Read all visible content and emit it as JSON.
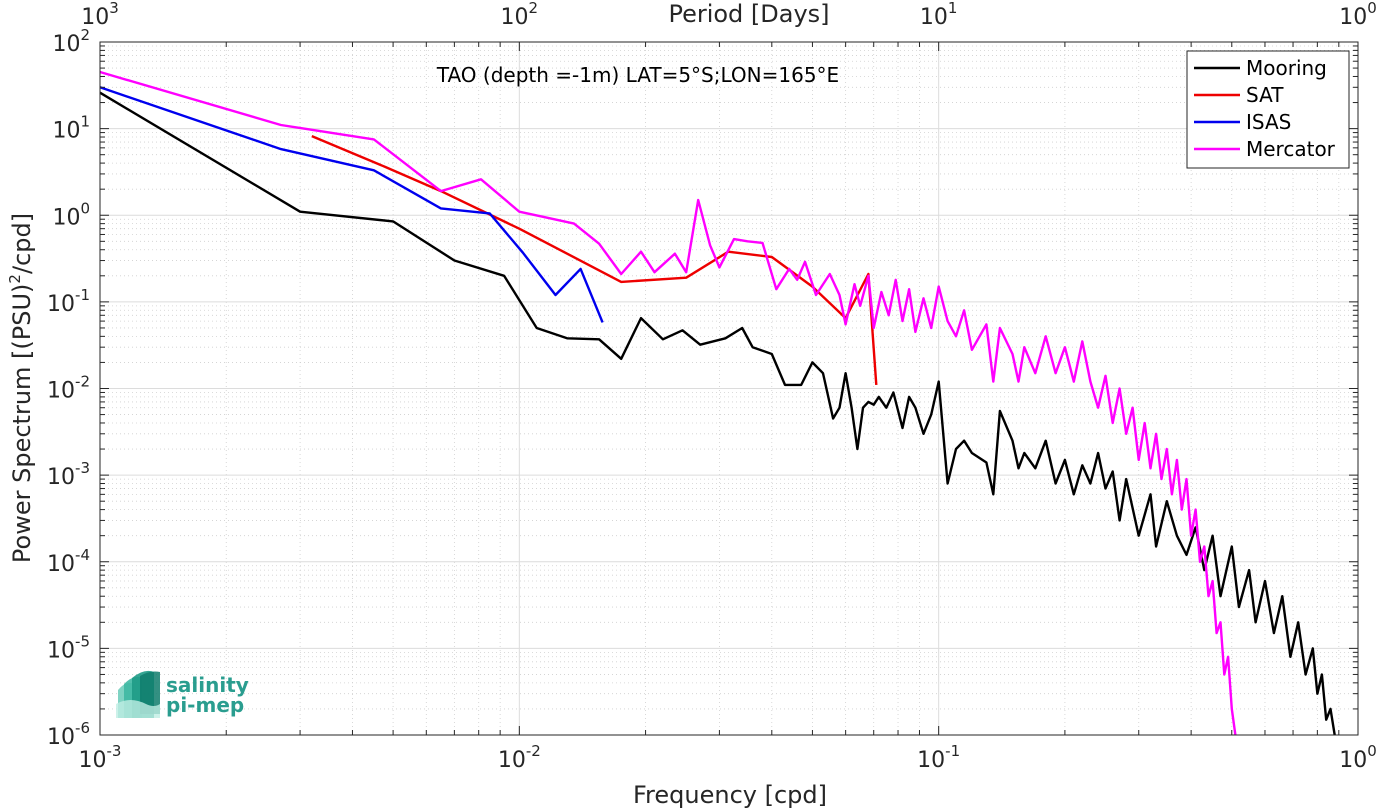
{
  "chart_data": {
    "type": "line",
    "title": "TAO (depth =-1m) LAT=5°S;LON=165°E",
    "xlabel": "Frequency [cpd]",
    "ylabel": "Power Spectrum [(PSU)^2/cpd]",
    "ylabel_parts": [
      "Power Spectrum [(PSU)",
      "2",
      "/cpd]"
    ],
    "top_xlabel": "Period [Days]",
    "xscale": "log",
    "yscale": "log",
    "xlim": [
      0.001,
      1
    ],
    "ylim": [
      1e-06,
      100
    ],
    "grid": true,
    "legend_position": "top-right",
    "x_ticks": [
      {
        "value": 0.001,
        "base": "10",
        "exp": "-3"
      },
      {
        "value": 0.01,
        "base": "10",
        "exp": "-2"
      },
      {
        "value": 0.1,
        "base": "10",
        "exp": "-1"
      },
      {
        "value": 1,
        "base": "10",
        "exp": "0"
      }
    ],
    "top_ticks": [
      {
        "value": 0.001,
        "base": "10",
        "exp": "3"
      },
      {
        "value": 0.01,
        "base": "10",
        "exp": "2"
      },
      {
        "value": 0.1,
        "base": "10",
        "exp": "1"
      },
      {
        "value": 1,
        "base": "10",
        "exp": "0"
      }
    ],
    "y_ticks": [
      {
        "value": 1e-06,
        "base": "10",
        "exp": "-6"
      },
      {
        "value": 1e-05,
        "base": "10",
        "exp": "-5"
      },
      {
        "value": 0.0001,
        "base": "10",
        "exp": "-4"
      },
      {
        "value": 0.001,
        "base": "10",
        "exp": "-3"
      },
      {
        "value": 0.01,
        "base": "10",
        "exp": "-2"
      },
      {
        "value": 0.1,
        "base": "10",
        "exp": "-1"
      },
      {
        "value": 1,
        "base": "10",
        "exp": "0"
      },
      {
        "value": 10,
        "base": "10",
        "exp": "1"
      },
      {
        "value": 100,
        "base": "10",
        "exp": "2"
      }
    ],
    "series": [
      {
        "name": "Mooring",
        "color": "#000000",
        "points": [
          [
            0.001,
            26
          ],
          [
            0.003,
            1.1
          ],
          [
            0.005,
            0.85
          ],
          [
            0.007,
            0.3
          ],
          [
            0.0092,
            0.2
          ],
          [
            0.011,
            0.05
          ],
          [
            0.013,
            0.038
          ],
          [
            0.0155,
            0.037
          ],
          [
            0.0175,
            0.022
          ],
          [
            0.0195,
            0.065
          ],
          [
            0.022,
            0.037
          ],
          [
            0.0245,
            0.047
          ],
          [
            0.027,
            0.032
          ],
          [
            0.031,
            0.038
          ],
          [
            0.034,
            0.05
          ],
          [
            0.036,
            0.03
          ],
          [
            0.04,
            0.025
          ],
          [
            0.043,
            0.011
          ],
          [
            0.047,
            0.011
          ],
          [
            0.05,
            0.02
          ],
          [
            0.053,
            0.015
          ],
          [
            0.056,
            0.0045
          ],
          [
            0.058,
            0.006
          ],
          [
            0.06,
            0.015
          ],
          [
            0.062,
            0.006
          ],
          [
            0.064,
            0.002
          ],
          [
            0.066,
            0.006
          ],
          [
            0.068,
            0.007
          ],
          [
            0.07,
            0.0065
          ],
          [
            0.072,
            0.008
          ],
          [
            0.075,
            0.006
          ],
          [
            0.078,
            0.009
          ],
          [
            0.082,
            0.0035
          ],
          [
            0.085,
            0.008
          ],
          [
            0.088,
            0.006
          ],
          [
            0.092,
            0.003
          ],
          [
            0.096,
            0.005
          ],
          [
            0.1,
            0.012
          ],
          [
            0.105,
            0.0008
          ],
          [
            0.11,
            0.002
          ],
          [
            0.115,
            0.0025
          ],
          [
            0.12,
            0.0018
          ],
          [
            0.13,
            0.0014
          ],
          [
            0.135,
            0.0006
          ],
          [
            0.14,
            0.0055
          ],
          [
            0.15,
            0.0025
          ],
          [
            0.155,
            0.0012
          ],
          [
            0.16,
            0.0018
          ],
          [
            0.17,
            0.0012
          ],
          [
            0.18,
            0.0025
          ],
          [
            0.19,
            0.0008
          ],
          [
            0.2,
            0.0015
          ],
          [
            0.21,
            0.0006
          ],
          [
            0.22,
            0.0013
          ],
          [
            0.23,
            0.0008
          ],
          [
            0.24,
            0.0018
          ],
          [
            0.25,
            0.0007
          ],
          [
            0.26,
            0.0011
          ],
          [
            0.27,
            0.0003
          ],
          [
            0.28,
            0.0009
          ],
          [
            0.3,
            0.0002
          ],
          [
            0.32,
            0.0006
          ],
          [
            0.33,
            0.00015
          ],
          [
            0.35,
            0.0005
          ],
          [
            0.37,
            0.0002
          ],
          [
            0.39,
            0.00012
          ],
          [
            0.41,
            0.00025
          ],
          [
            0.43,
            8e-05
          ],
          [
            0.45,
            0.0002
          ],
          [
            0.47,
            4e-05
          ],
          [
            0.5,
            0.00015
          ],
          [
            0.52,
            3e-05
          ],
          [
            0.55,
            8e-05
          ],
          [
            0.57,
            2e-05
          ],
          [
            0.6,
            6e-05
          ],
          [
            0.63,
            1.5e-05
          ],
          [
            0.66,
            4e-05
          ],
          [
            0.69,
            8e-06
          ],
          [
            0.72,
            2e-05
          ],
          [
            0.75,
            5e-06
          ],
          [
            0.78,
            1e-05
          ],
          [
            0.8,
            3e-06
          ],
          [
            0.82,
            5e-06
          ],
          [
            0.84,
            1.5e-06
          ],
          [
            0.86,
            2e-06
          ],
          [
            0.88,
            1e-06
          ]
        ]
      },
      {
        "name": "SAT",
        "color": "#ee0000",
        "points": [
          [
            0.0032,
            8.2
          ],
          [
            0.0048,
            3.6
          ],
          [
            0.0065,
            1.9
          ],
          [
            0.01,
            0.7
          ],
          [
            0.0175,
            0.17
          ],
          [
            0.025,
            0.19
          ],
          [
            0.0315,
            0.38
          ],
          [
            0.04,
            0.33
          ],
          [
            0.05,
            0.15
          ],
          [
            0.06,
            0.065
          ],
          [
            0.068,
            0.21
          ],
          [
            0.071,
            0.011
          ]
        ]
      },
      {
        "name": "ISAS",
        "color": "#0000ee",
        "points": [
          [
            0.001,
            30
          ],
          [
            0.0027,
            5.8
          ],
          [
            0.0045,
            3.3
          ],
          [
            0.0065,
            1.2
          ],
          [
            0.0085,
            1.05
          ],
          [
            0.0102,
            0.37
          ],
          [
            0.0122,
            0.12
          ],
          [
            0.014,
            0.24
          ],
          [
            0.0158,
            0.058
          ]
        ]
      },
      {
        "name": "Mercator",
        "color": "#ff00ff",
        "points": [
          [
            0.001,
            45
          ],
          [
            0.0027,
            11
          ],
          [
            0.0045,
            7.5
          ],
          [
            0.0065,
            1.9
          ],
          [
            0.0081,
            2.6
          ],
          [
            0.01,
            1.1
          ],
          [
            0.0115,
            0.95
          ],
          [
            0.0135,
            0.8
          ],
          [
            0.0155,
            0.47
          ],
          [
            0.0175,
            0.21
          ],
          [
            0.0195,
            0.38
          ],
          [
            0.021,
            0.22
          ],
          [
            0.0235,
            0.36
          ],
          [
            0.025,
            0.22
          ],
          [
            0.0267,
            1.5
          ],
          [
            0.0285,
            0.45
          ],
          [
            0.03,
            0.25
          ],
          [
            0.0325,
            0.53
          ],
          [
            0.035,
            0.5
          ],
          [
            0.038,
            0.48
          ],
          [
            0.041,
            0.14
          ],
          [
            0.044,
            0.24
          ],
          [
            0.046,
            0.18
          ],
          [
            0.048,
            0.29
          ],
          [
            0.051,
            0.12
          ],
          [
            0.055,
            0.21
          ],
          [
            0.058,
            0.12
          ],
          [
            0.06,
            0.055
          ],
          [
            0.063,
            0.16
          ],
          [
            0.065,
            0.09
          ],
          [
            0.068,
            0.2
          ],
          [
            0.07,
            0.05
          ],
          [
            0.073,
            0.13
          ],
          [
            0.076,
            0.07
          ],
          [
            0.079,
            0.18
          ],
          [
            0.082,
            0.06
          ],
          [
            0.085,
            0.14
          ],
          [
            0.088,
            0.045
          ],
          [
            0.092,
            0.11
          ],
          [
            0.096,
            0.05
          ],
          [
            0.1,
            0.15
          ],
          [
            0.105,
            0.06
          ],
          [
            0.11,
            0.04
          ],
          [
            0.115,
            0.08
          ],
          [
            0.12,
            0.028
          ],
          [
            0.13,
            0.055
          ],
          [
            0.135,
            0.012
          ],
          [
            0.14,
            0.05
          ],
          [
            0.15,
            0.025
          ],
          [
            0.155,
            0.012
          ],
          [
            0.16,
            0.03
          ],
          [
            0.17,
            0.015
          ],
          [
            0.18,
            0.04
          ],
          [
            0.19,
            0.015
          ],
          [
            0.2,
            0.03
          ],
          [
            0.21,
            0.012
          ],
          [
            0.22,
            0.035
          ],
          [
            0.23,
            0.012
          ],
          [
            0.24,
            0.006
          ],
          [
            0.25,
            0.014
          ],
          [
            0.26,
            0.004
          ],
          [
            0.27,
            0.01
          ],
          [
            0.28,
            0.003
          ],
          [
            0.29,
            0.006
          ],
          [
            0.3,
            0.0015
          ],
          [
            0.31,
            0.004
          ],
          [
            0.32,
            0.0012
          ],
          [
            0.33,
            0.003
          ],
          [
            0.34,
            0.0009
          ],
          [
            0.35,
            0.002
          ],
          [
            0.36,
            0.0006
          ],
          [
            0.37,
            0.0015
          ],
          [
            0.38,
            0.0004
          ],
          [
            0.39,
            0.0009
          ],
          [
            0.4,
            0.0002
          ],
          [
            0.41,
            0.0004
          ],
          [
            0.42,
            0.0001
          ],
          [
            0.43,
            0.00015
          ],
          [
            0.44,
            4e-05
          ],
          [
            0.45,
            6e-05
          ],
          [
            0.46,
            1.5e-05
          ],
          [
            0.47,
            2e-05
          ],
          [
            0.48,
            5e-06
          ],
          [
            0.49,
            8e-06
          ],
          [
            0.5,
            2e-06
          ],
          [
            0.51,
            1e-06
          ]
        ]
      }
    ]
  },
  "logo": {
    "line1": "salinity",
    "line2": "pi-mep",
    "color": "#2a9d8f"
  }
}
